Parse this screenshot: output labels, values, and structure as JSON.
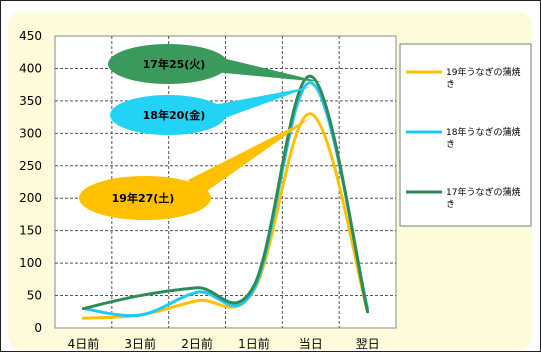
{
  "chart_data": {
    "type": "line",
    "categories": [
      "4日前",
      "3日前",
      "2日前",
      "1日前",
      "当日",
      "翌日"
    ],
    "ylim": [
      0,
      450
    ],
    "yticks": [
      0,
      50,
      100,
      150,
      200,
      250,
      300,
      350,
      400,
      450
    ],
    "grid": true,
    "legend_position": "right",
    "series": [
      {
        "name": "19年うなぎの蒲焼き",
        "color": "#ffc000",
        "values": [
          15,
          20,
          42,
          58,
          330,
          25
        ]
      },
      {
        "name": "18年うなぎの蒲焼き",
        "color": "#1fc8f5",
        "values": [
          30,
          20,
          55,
          60,
          378,
          30
        ]
      },
      {
        "name": "17年うなぎの蒲焼き",
        "color": "#2e8b57",
        "values": [
          30,
          50,
          62,
          65,
          388,
          25
        ]
      }
    ],
    "callouts": [
      {
        "text": "17年25(火)",
        "fill": "#3a9a5e",
        "series": 2
      },
      {
        "text": "18年20(金)",
        "fill": "#22d3f5",
        "series": 1
      },
      {
        "text": "19年27(土)",
        "fill": "#ffc000",
        "series": 0
      }
    ]
  }
}
